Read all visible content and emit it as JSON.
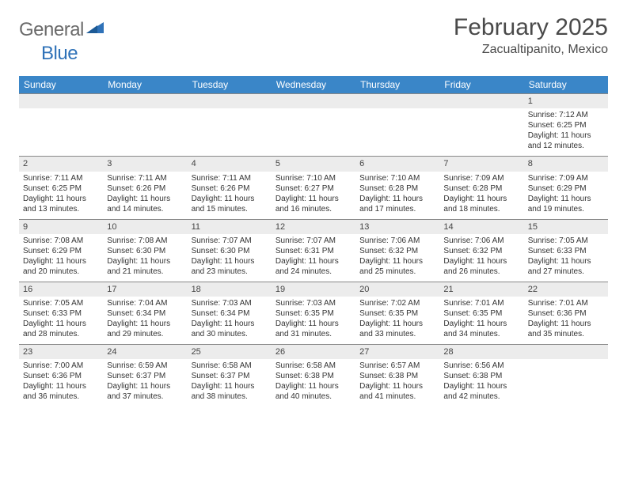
{
  "logo": {
    "text1": "General",
    "text2": "Blue"
  },
  "title": "February 2025",
  "location": "Zacualtipanito, Mexico",
  "colors": {
    "header_bg": "#3a86c8",
    "header_text": "#ffffff",
    "daynum_bg": "#ececec",
    "border": "#888888",
    "body_text": "#333333",
    "logo_gray": "#6b6b6b",
    "logo_blue": "#2f72b8"
  },
  "typography": {
    "title_fontsize": 30,
    "location_fontsize": 16,
    "weekday_fontsize": 12,
    "daynum_fontsize": 11,
    "body_fontsize": 10
  },
  "weekdays": [
    "Sunday",
    "Monday",
    "Tuesday",
    "Wednesday",
    "Thursday",
    "Friday",
    "Saturday"
  ],
  "weeks": [
    [
      {
        "n": "",
        "lines": []
      },
      {
        "n": "",
        "lines": []
      },
      {
        "n": "",
        "lines": []
      },
      {
        "n": "",
        "lines": []
      },
      {
        "n": "",
        "lines": []
      },
      {
        "n": "",
        "lines": []
      },
      {
        "n": "1",
        "lines": [
          "Sunrise: 7:12 AM",
          "Sunset: 6:25 PM",
          "Daylight: 11 hours and 12 minutes."
        ]
      }
    ],
    [
      {
        "n": "2",
        "lines": [
          "Sunrise: 7:11 AM",
          "Sunset: 6:25 PM",
          "Daylight: 11 hours and 13 minutes."
        ]
      },
      {
        "n": "3",
        "lines": [
          "Sunrise: 7:11 AM",
          "Sunset: 6:26 PM",
          "Daylight: 11 hours and 14 minutes."
        ]
      },
      {
        "n": "4",
        "lines": [
          "Sunrise: 7:11 AM",
          "Sunset: 6:26 PM",
          "Daylight: 11 hours and 15 minutes."
        ]
      },
      {
        "n": "5",
        "lines": [
          "Sunrise: 7:10 AM",
          "Sunset: 6:27 PM",
          "Daylight: 11 hours and 16 minutes."
        ]
      },
      {
        "n": "6",
        "lines": [
          "Sunrise: 7:10 AM",
          "Sunset: 6:28 PM",
          "Daylight: 11 hours and 17 minutes."
        ]
      },
      {
        "n": "7",
        "lines": [
          "Sunrise: 7:09 AM",
          "Sunset: 6:28 PM",
          "Daylight: 11 hours and 18 minutes."
        ]
      },
      {
        "n": "8",
        "lines": [
          "Sunrise: 7:09 AM",
          "Sunset: 6:29 PM",
          "Daylight: 11 hours and 19 minutes."
        ]
      }
    ],
    [
      {
        "n": "9",
        "lines": [
          "Sunrise: 7:08 AM",
          "Sunset: 6:29 PM",
          "Daylight: 11 hours and 20 minutes."
        ]
      },
      {
        "n": "10",
        "lines": [
          "Sunrise: 7:08 AM",
          "Sunset: 6:30 PM",
          "Daylight: 11 hours and 21 minutes."
        ]
      },
      {
        "n": "11",
        "lines": [
          "Sunrise: 7:07 AM",
          "Sunset: 6:30 PM",
          "Daylight: 11 hours and 23 minutes."
        ]
      },
      {
        "n": "12",
        "lines": [
          "Sunrise: 7:07 AM",
          "Sunset: 6:31 PM",
          "Daylight: 11 hours and 24 minutes."
        ]
      },
      {
        "n": "13",
        "lines": [
          "Sunrise: 7:06 AM",
          "Sunset: 6:32 PM",
          "Daylight: 11 hours and 25 minutes."
        ]
      },
      {
        "n": "14",
        "lines": [
          "Sunrise: 7:06 AM",
          "Sunset: 6:32 PM",
          "Daylight: 11 hours and 26 minutes."
        ]
      },
      {
        "n": "15",
        "lines": [
          "Sunrise: 7:05 AM",
          "Sunset: 6:33 PM",
          "Daylight: 11 hours and 27 minutes."
        ]
      }
    ],
    [
      {
        "n": "16",
        "lines": [
          "Sunrise: 7:05 AM",
          "Sunset: 6:33 PM",
          "Daylight: 11 hours and 28 minutes."
        ]
      },
      {
        "n": "17",
        "lines": [
          "Sunrise: 7:04 AM",
          "Sunset: 6:34 PM",
          "Daylight: 11 hours and 29 minutes."
        ]
      },
      {
        "n": "18",
        "lines": [
          "Sunrise: 7:03 AM",
          "Sunset: 6:34 PM",
          "Daylight: 11 hours and 30 minutes."
        ]
      },
      {
        "n": "19",
        "lines": [
          "Sunrise: 7:03 AM",
          "Sunset: 6:35 PM",
          "Daylight: 11 hours and 31 minutes."
        ]
      },
      {
        "n": "20",
        "lines": [
          "Sunrise: 7:02 AM",
          "Sunset: 6:35 PM",
          "Daylight: 11 hours and 33 minutes."
        ]
      },
      {
        "n": "21",
        "lines": [
          "Sunrise: 7:01 AM",
          "Sunset: 6:35 PM",
          "Daylight: 11 hours and 34 minutes."
        ]
      },
      {
        "n": "22",
        "lines": [
          "Sunrise: 7:01 AM",
          "Sunset: 6:36 PM",
          "Daylight: 11 hours and 35 minutes."
        ]
      }
    ],
    [
      {
        "n": "23",
        "lines": [
          "Sunrise: 7:00 AM",
          "Sunset: 6:36 PM",
          "Daylight: 11 hours and 36 minutes."
        ]
      },
      {
        "n": "24",
        "lines": [
          "Sunrise: 6:59 AM",
          "Sunset: 6:37 PM",
          "Daylight: 11 hours and 37 minutes."
        ]
      },
      {
        "n": "25",
        "lines": [
          "Sunrise: 6:58 AM",
          "Sunset: 6:37 PM",
          "Daylight: 11 hours and 38 minutes."
        ]
      },
      {
        "n": "26",
        "lines": [
          "Sunrise: 6:58 AM",
          "Sunset: 6:38 PM",
          "Daylight: 11 hours and 40 minutes."
        ]
      },
      {
        "n": "27",
        "lines": [
          "Sunrise: 6:57 AM",
          "Sunset: 6:38 PM",
          "Daylight: 11 hours and 41 minutes."
        ]
      },
      {
        "n": "28",
        "lines": [
          "Sunrise: 6:56 AM",
          "Sunset: 6:38 PM",
          "Daylight: 11 hours and 42 minutes."
        ]
      },
      {
        "n": "",
        "lines": []
      }
    ]
  ]
}
